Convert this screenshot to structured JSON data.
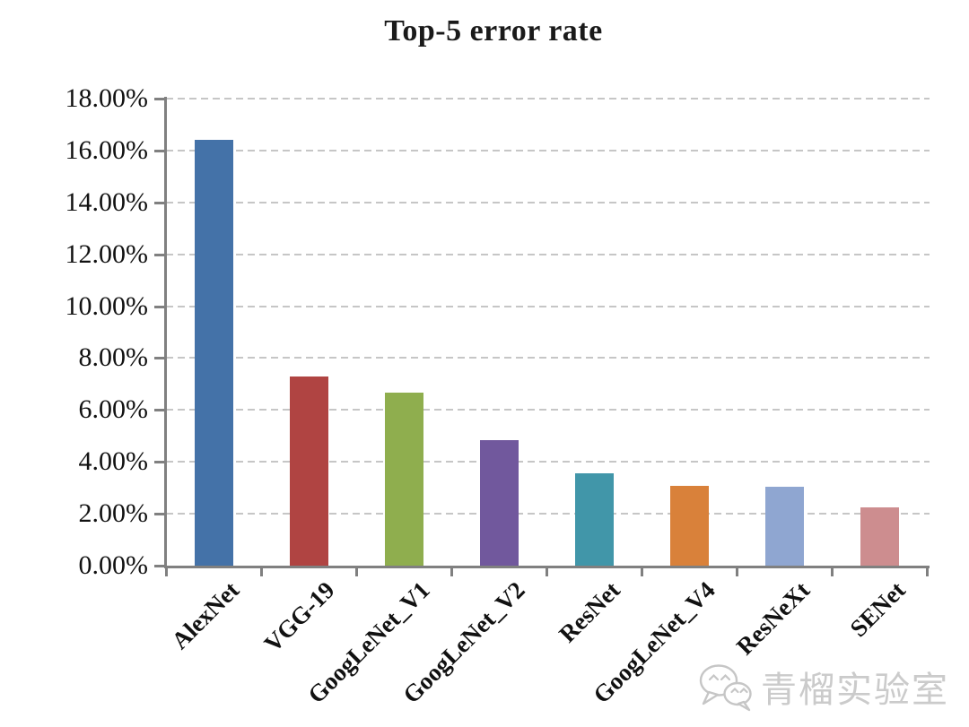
{
  "chart_data": {
    "type": "bar",
    "title": "Top-5 error rate",
    "categories": [
      "AlexNet",
      "VGG-19",
      "GoogLeNet_V1",
      "GoogLeNet_V2",
      "ResNet",
      "GoogLeNet_V4",
      "ResNeXt",
      "SENet"
    ],
    "values": [
      16.4,
      7.3,
      6.67,
      4.82,
      3.57,
      3.08,
      3.03,
      2.25
    ],
    "unit": "%",
    "bar_colors": [
      "#4472a8",
      "#b04442",
      "#8fae4e",
      "#71589d",
      "#4196a9",
      "#d9813a",
      "#8fa6d1",
      "#cd8d8f"
    ],
    "xlabel": "",
    "ylabel": "",
    "ylim": [
      0,
      18
    ],
    "ytick_step": 2,
    "ytick_labels": [
      "0.00%",
      "2.00%",
      "4.00%",
      "6.00%",
      "8.00%",
      "10.00%",
      "12.00%",
      "14.00%",
      "16.00%",
      "18.00%"
    ],
    "grid": "horizontal-dashed",
    "legend_position": "none"
  },
  "watermark": {
    "text": "青榴实验室",
    "icon": "wechat-icon",
    "text_color": "#cbcbcb"
  },
  "colors": {
    "background": "#ffffff",
    "axis": "#808080",
    "gridline": "#c6c6c6",
    "title_text": "#1a1a1a"
  }
}
